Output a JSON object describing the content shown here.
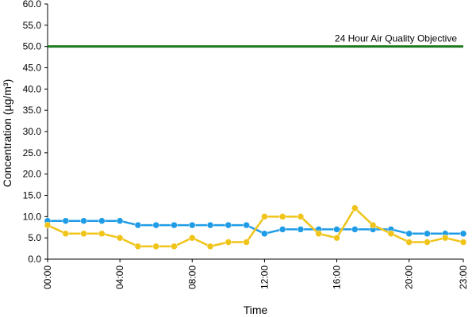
{
  "chart_data": {
    "type": "line",
    "xlabel": "Time",
    "ylabel": "Concentration (µg/m³)",
    "ylim": [
      0,
      60
    ],
    "y_ticks": [
      "0.0",
      "5.0",
      "10.0",
      "15.0",
      "20.0",
      "25.0",
      "30.0",
      "35.0",
      "40.0",
      "45.0",
      "50.0",
      "55.0",
      "60.0"
    ],
    "x_hours": [
      0,
      1,
      2,
      3,
      4,
      5,
      6,
      7,
      8,
      9,
      10,
      11,
      12,
      13,
      14,
      15,
      16,
      17,
      18,
      19,
      20,
      21,
      22,
      23
    ],
    "x_tick_labels": [
      "00:00",
      "04:00",
      "08:00",
      "12:00",
      "16:00",
      "20:00",
      "23:00"
    ],
    "x_tick_hours": [
      0,
      4,
      8,
      12,
      16,
      20,
      23
    ],
    "grid": false,
    "legend": "none",
    "series": [
      {
        "color": "#1f9ce6",
        "values": [
          9,
          9,
          9,
          9,
          9,
          8,
          8,
          8,
          8,
          8,
          8,
          8,
          6,
          7,
          7,
          7,
          7,
          7,
          7,
          7,
          6,
          6,
          6,
          6
        ]
      },
      {
        "color": "#f0c419",
        "values": [
          8,
          6,
          6,
          6,
          5,
          3,
          3,
          3,
          5,
          3,
          4,
          4,
          10,
          10,
          10,
          6,
          5,
          12,
          8,
          6,
          4,
          4,
          5,
          4
        ]
      }
    ],
    "reference_line": {
      "value": 50,
      "label": "24 Hour Air Quality Objective",
      "color": "#1e7a1e"
    }
  }
}
